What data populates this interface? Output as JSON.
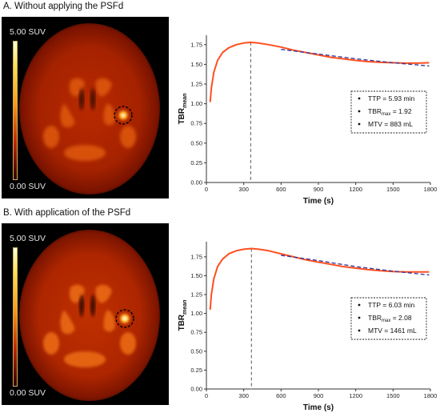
{
  "panels": [
    {
      "title": "A. Without applying the PSFd",
      "scale_max": "5.00 SUV",
      "scale_min": "0.00 SUV",
      "colors": {
        "red": "#ff4f1f",
        "blue": "#3a3aa0",
        "ttp_line": "#666666"
      }
    },
    {
      "title": "B. With application of the PSFd",
      "scale_max": "5.00 SUV",
      "scale_min": "0.00 SUV",
      "colors": {
        "red": "#ff4f1f",
        "blue": "#3a3aa0",
        "ttp_line": "#666666"
      }
    }
  ],
  "chart_data": [
    {
      "type": "line",
      "xlabel": "Time (s)",
      "ylabel_main": "TBR",
      "ylabel_sub": "mean",
      "xlim": [
        0,
        1800
      ],
      "ylim": [
        0,
        1.87
      ],
      "xticks": [
        0,
        300,
        600,
        900,
        1200,
        1500,
        1800
      ],
      "yticks": [
        "0.00",
        "0.25",
        "0.50",
        "0.75",
        "1.00",
        "1.25",
        "1.50",
        "1.75"
      ],
      "ttp_line_x": 356,
      "series": [
        {
          "style": "solid",
          "x": [
            30,
            40,
            60,
            90,
            130,
            180,
            240,
            300,
            356,
            420,
            500,
            600,
            700,
            800,
            900,
            1000,
            1100,
            1200,
            1300,
            1400,
            1500,
            1600,
            1700,
            1790
          ],
          "y": [
            1.02,
            1.2,
            1.4,
            1.55,
            1.65,
            1.71,
            1.75,
            1.77,
            1.78,
            1.77,
            1.75,
            1.72,
            1.68,
            1.65,
            1.62,
            1.59,
            1.57,
            1.55,
            1.535,
            1.525,
            1.52,
            1.515,
            1.515,
            1.52
          ]
        },
        {
          "style": "dashed",
          "x": [
            600,
            900,
            1200,
            1500,
            1790
          ],
          "y": [
            1.69,
            1.63,
            1.57,
            1.52,
            1.48
          ]
        }
      ],
      "legend": [
        {
          "label": "TTP = 5.93 min"
        },
        {
          "label": "TBR",
          "sub": "max",
          "suffix": " = 1.92"
        },
        {
          "label": "MTV = 883 mL"
        }
      ]
    },
    {
      "type": "line",
      "xlabel": "Time (s)",
      "ylabel_main": "TBR",
      "ylabel_sub": "mean",
      "xlim": [
        0,
        1800
      ],
      "ylim": [
        0,
        1.95
      ],
      "xticks": [
        0,
        300,
        600,
        900,
        1200,
        1500,
        1800
      ],
      "yticks": [
        "0.00",
        "0.25",
        "0.50",
        "0.75",
        "1.00",
        "1.25",
        "1.50",
        "1.75"
      ],
      "ttp_line_x": 362,
      "series": [
        {
          "style": "solid",
          "x": [
            30,
            40,
            60,
            90,
            130,
            180,
            240,
            300,
            362,
            420,
            500,
            600,
            700,
            800,
            900,
            1000,
            1100,
            1200,
            1300,
            1400,
            1500,
            1600,
            1700,
            1790
          ],
          "y": [
            1.05,
            1.25,
            1.46,
            1.62,
            1.72,
            1.79,
            1.83,
            1.85,
            1.86,
            1.85,
            1.83,
            1.79,
            1.75,
            1.71,
            1.68,
            1.65,
            1.62,
            1.6,
            1.58,
            1.565,
            1.555,
            1.55,
            1.55,
            1.55
          ]
        },
        {
          "style": "dashed",
          "x": [
            600,
            900,
            1200,
            1500,
            1790
          ],
          "y": [
            1.77,
            1.7,
            1.62,
            1.56,
            1.51
          ]
        }
      ],
      "legend": [
        {
          "label": "TTP = 6.03 min"
        },
        {
          "label": "TBR",
          "sub": "max",
          "suffix": " = 2.08"
        },
        {
          "label": "MTV = 1461 mL"
        }
      ]
    }
  ]
}
